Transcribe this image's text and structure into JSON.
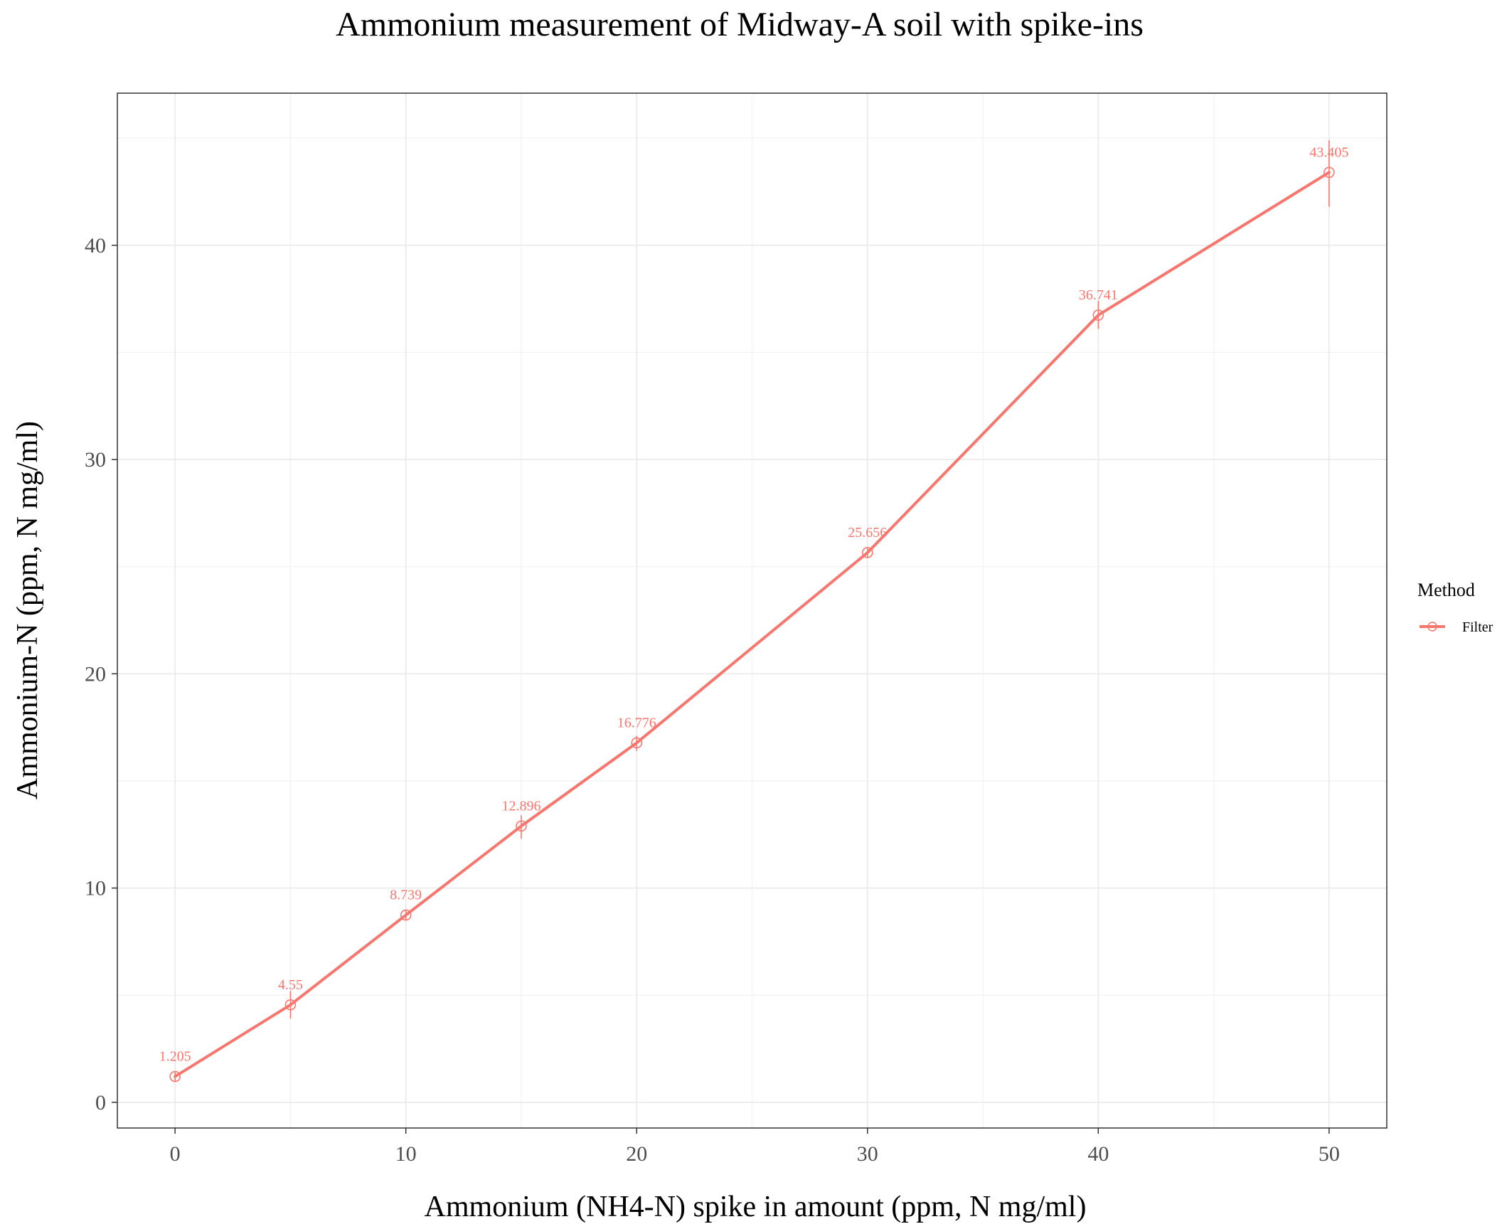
{
  "chart_data": {
    "type": "line",
    "title": "Ammonium measurement of Midway-A soil with spike-ins",
    "xlabel": "Ammonium (NH4-N) spike in amount (ppm, N mg/ml)",
    "ylabel": "Ammonium-N (ppm, N mg/ml)",
    "xlim": [
      -2.5,
      52.5
    ],
    "ylim": [
      -1.2,
      47.1
    ],
    "x_ticks": [
      0,
      10,
      20,
      30,
      40,
      50
    ],
    "y_ticks": [
      0,
      10,
      20,
      30,
      40
    ],
    "x_minor": [
      5,
      15,
      25,
      35,
      45
    ],
    "y_minor": [
      5,
      15,
      25,
      35,
      45
    ],
    "grid": true,
    "legend": {
      "title": "Method",
      "position": "right"
    },
    "series": [
      {
        "name": "Filter",
        "color": "#f8766d",
        "x": [
          0,
          5,
          10,
          15,
          20,
          30,
          40,
          50
        ],
        "y": [
          1.205,
          4.55,
          8.739,
          12.896,
          16.776,
          25.656,
          36.741,
          43.405
        ],
        "labels": [
          "1.205",
          "4.55",
          "8.739",
          "12.896",
          "16.776",
          "25.656",
          "36.741",
          "43.405"
        ],
        "error_low": [
          1.0,
          3.9,
          8.5,
          12.3,
          16.4,
          25.4,
          36.1,
          41.8
        ],
        "error_high": [
          1.4,
          5.2,
          9.0,
          13.4,
          17.1,
          25.9,
          37.4,
          44.9
        ]
      }
    ]
  }
}
